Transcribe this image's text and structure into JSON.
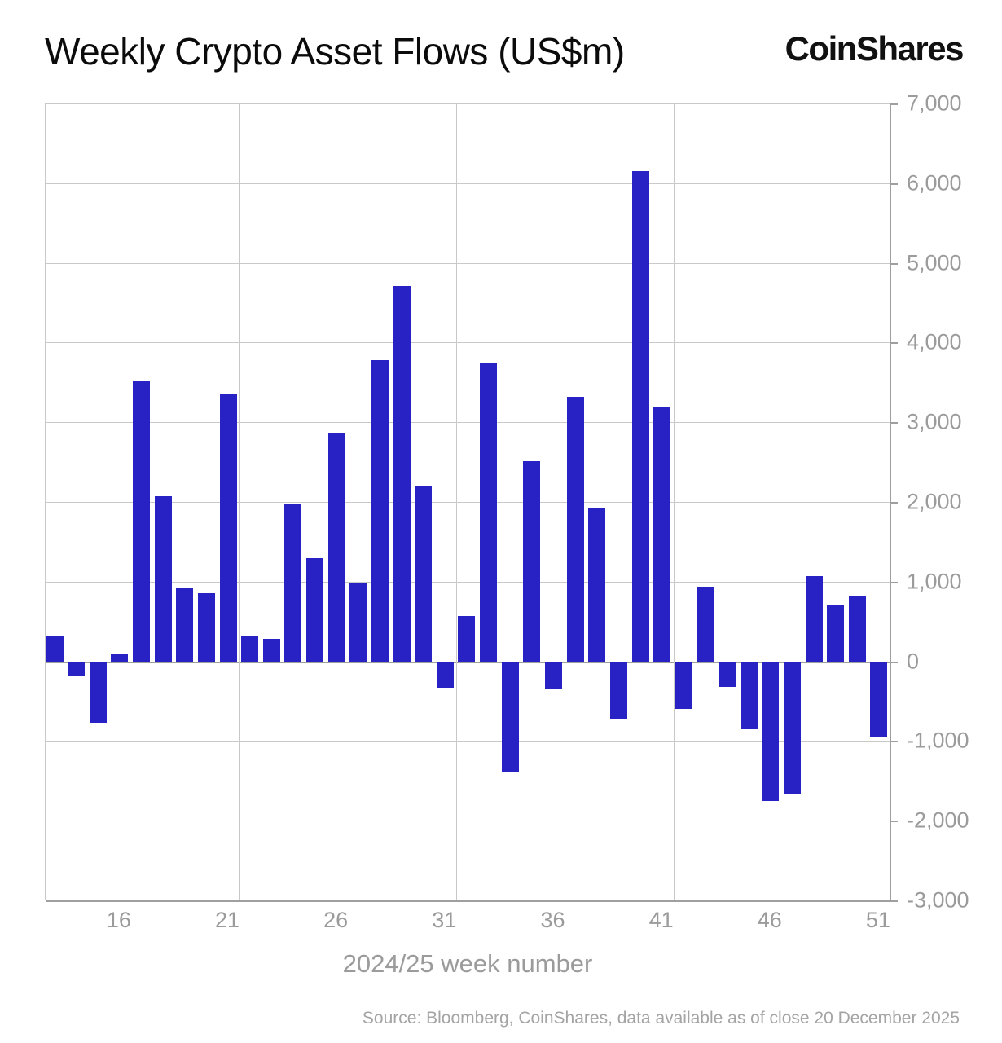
{
  "header": {
    "title": "Weekly Crypto Asset Flows (US$m)",
    "logo": "CoinShares"
  },
  "chart_data": {
    "type": "bar",
    "title": "Weekly Crypto Asset Flows (US$m)",
    "categories": [
      13,
      14,
      15,
      16,
      17,
      18,
      19,
      20,
      21,
      22,
      23,
      24,
      25,
      26,
      27,
      28,
      29,
      30,
      31,
      32,
      33,
      34,
      35,
      36,
      37,
      38,
      39,
      40,
      41,
      42,
      43,
      44,
      45,
      46,
      47,
      48,
      49,
      50,
      51
    ],
    "values": [
      310,
      -180,
      -770,
      100,
      3520,
      2070,
      920,
      850,
      3360,
      320,
      280,
      1970,
      1290,
      2870,
      990,
      3780,
      4710,
      2190,
      -330,
      570,
      3740,
      -1390,
      2510,
      -350,
      3320,
      1920,
      -720,
      6150,
      3190,
      -600,
      940,
      -320,
      -850,
      -1750,
      -1660,
      1070,
      710,
      820,
      -940
    ],
    "xlabel": "2024/25 week number",
    "ylabel": "",
    "ylim": [
      -3000,
      7000
    ],
    "y_ticks": [
      7000,
      6000,
      5000,
      4000,
      3000,
      2000,
      1000,
      0,
      -1000,
      -2000,
      -3000
    ],
    "x_ticks_shown": [
      16,
      21,
      26,
      31,
      36,
      41,
      46,
      51
    ],
    "grid": true,
    "legend": "none",
    "bar_color": "#2822c4"
  },
  "footer": {
    "source": "Source: Bloomberg, CoinShares, data available as of close 20 December 2025"
  },
  "colors": {
    "bar": "#2822c4",
    "gridline": "#c9c9c9",
    "axis": "#9f9f9f",
    "axis_text": "#9b9b9b",
    "title_text": "#0b0b0b"
  }
}
